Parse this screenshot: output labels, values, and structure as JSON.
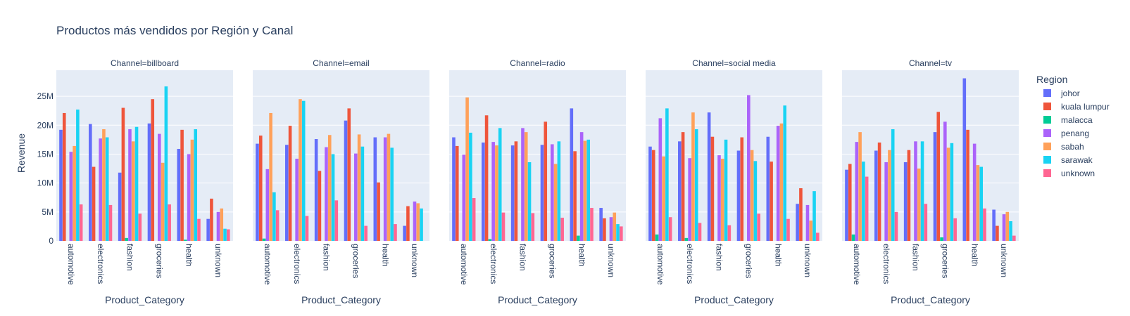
{
  "chart_data": {
    "type": "bar",
    "title": "Productos más vendidos por Región y Canal",
    "xlabel": "Product_Category",
    "ylabel": "Revenue",
    "ylim": [
      0,
      29500000
    ],
    "yticks": [
      0,
      5000000,
      10000000,
      15000000,
      20000000,
      25000000
    ],
    "ytick_labels": [
      "0",
      "5M",
      "10M",
      "15M",
      "20M",
      "25M"
    ],
    "categories": [
      "automotive",
      "electronics",
      "fashion",
      "groceries",
      "health",
      "unknown"
    ],
    "legend_title": "Region",
    "legend_position": "right",
    "series": [
      {
        "name": "johor",
        "color": "#636efa"
      },
      {
        "name": "kuala lumpur",
        "color": "#EF553B"
      },
      {
        "name": "malacca",
        "color": "#00cc96"
      },
      {
        "name": "penang",
        "color": "#ab63fa"
      },
      {
        "name": "sabah",
        "color": "#FFA15A"
      },
      {
        "name": "sarawak",
        "color": "#19d3f3"
      },
      {
        "name": "unknown",
        "color": "#FF6692"
      }
    ],
    "facets": [
      {
        "label": "Channel=billboard",
        "values": [
          [
            19.2,
            22.1,
            0,
            15.4,
            16.4,
            22.7,
            6.3
          ],
          [
            20.2,
            12.8,
            0,
            17.7,
            19.3,
            17.9,
            6.2
          ],
          [
            11.8,
            23.0,
            0.5,
            19.3,
            17.2,
            19.7,
            4.7
          ],
          [
            20.3,
            24.5,
            0,
            18.5,
            13.5,
            26.7,
            6.3
          ],
          [
            15.9,
            19.2,
            0.2,
            15.0,
            17.5,
            19.3,
            3.8
          ],
          [
            3.8,
            7.3,
            0,
            5.0,
            5.6,
            2.1,
            2.0
          ]
        ]
      },
      {
        "label": "Channel=email",
        "values": [
          [
            16.8,
            18.2,
            0.4,
            12.4,
            22.1,
            8.4,
            5.3
          ],
          [
            16.6,
            19.9,
            0,
            14.2,
            24.5,
            24.2,
            4.3
          ],
          [
            17.6,
            12.1,
            0,
            16.2,
            18.3,
            15.0,
            7.0
          ],
          [
            20.8,
            22.9,
            0,
            15.1,
            18.4,
            16.3,
            2.6
          ],
          [
            17.9,
            10.1,
            0,
            17.9,
            18.5,
            16.1,
            2.9
          ],
          [
            2.6,
            6.0,
            0,
            6.8,
            6.5,
            5.6,
            0
          ]
        ]
      },
      {
        "label": "Channel=radio",
        "values": [
          [
            17.9,
            16.4,
            0,
            14.9,
            24.8,
            18.7,
            7.4
          ],
          [
            17.0,
            21.7,
            0.3,
            17.1,
            16.5,
            19.5,
            4.9
          ],
          [
            16.5,
            17.2,
            0,
            19.5,
            18.8,
            13.6,
            4.8
          ],
          [
            16.6,
            20.6,
            0,
            16.7,
            13.3,
            17.2,
            4.0
          ],
          [
            22.9,
            15.5,
            0.9,
            18.8,
            17.3,
            17.5,
            5.7
          ],
          [
            5.7,
            3.9,
            0,
            4.1,
            4.9,
            2.9,
            2.5
          ]
        ]
      },
      {
        "label": "Channel=social media",
        "values": [
          [
            16.3,
            15.7,
            1.1,
            21.2,
            14.6,
            22.9,
            4.1
          ],
          [
            17.2,
            18.8,
            0.5,
            14.3,
            22.2,
            19.3,
            3.1
          ],
          [
            22.2,
            18.0,
            0,
            14.8,
            14.2,
            17.5,
            2.7
          ],
          [
            15.6,
            17.9,
            0,
            25.2,
            15.7,
            13.8,
            4.7
          ],
          [
            18.0,
            13.7,
            0,
            19.9,
            20.3,
            23.4,
            3.8
          ],
          [
            6.4,
            9.1,
            0,
            6.2,
            3.5,
            8.6,
            1.4
          ]
        ]
      },
      {
        "label": "Channel=tv",
        "values": [
          [
            12.3,
            13.3,
            1.1,
            17.1,
            18.8,
            13.7,
            11.1
          ],
          [
            15.6,
            17.0,
            0,
            13.6,
            15.7,
            19.3,
            5.0
          ],
          [
            13.6,
            15.7,
            0,
            17.2,
            12.5,
            17.2,
            6.4
          ],
          [
            18.8,
            22.3,
            0.6,
            20.6,
            16.1,
            16.9,
            3.9
          ],
          [
            28.1,
            19.2,
            0,
            16.8,
            13.1,
            12.8,
            5.6
          ],
          [
            5.4,
            2.6,
            0,
            4.6,
            5.0,
            3.4,
            0.9
          ]
        ]
      }
    ]
  }
}
